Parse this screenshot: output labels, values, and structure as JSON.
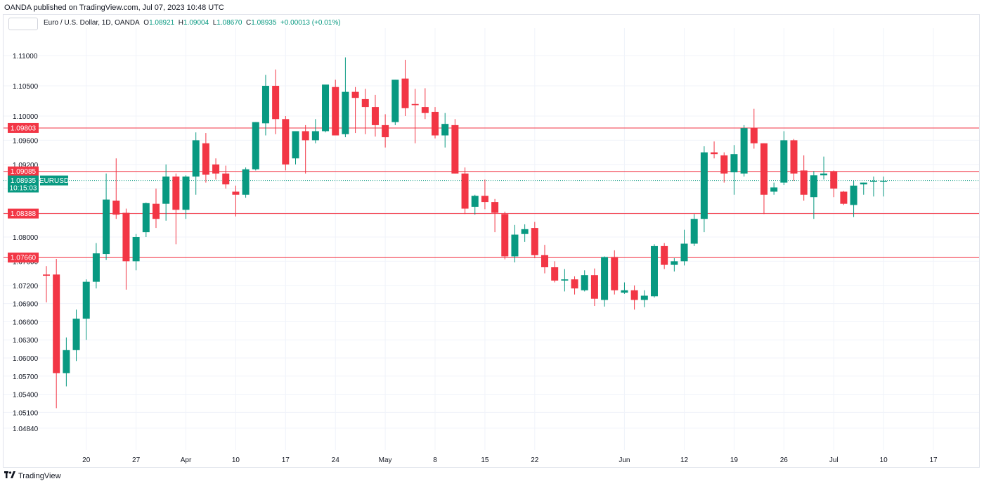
{
  "header": {
    "published": "OANDA published on TradingView.com, Jul 07, 2023 10:48 UTC"
  },
  "legend": {
    "symbol": "Euro / U.S. Dollar, 1D, OANDA",
    "o_label": "O",
    "o_value": "1.08921",
    "h_label": "H",
    "h_value": "1.09004",
    "l_label": "L",
    "l_value": "1.08670",
    "c_label": "C",
    "c_value": "1.08935",
    "change": "+0.00013 (+0.01%)"
  },
  "footer": {
    "brand": "TradingView",
    "logo": "tradingview-logo-icon"
  },
  "colors": {
    "up": "#089981",
    "down": "#f23645",
    "level": "#f23645",
    "grid": "#f0f3fa"
  },
  "chart_data": {
    "type": "candlestick",
    "symbol_tag": "EURUSD",
    "last_price": "1.08935",
    "countdown": "10:15:03",
    "y_ticks": [
      "1.11000",
      "1.10500",
      "1.10000",
      "1.09600",
      "1.09200",
      "1.08800",
      "1.08400",
      "1.08000",
      "1.07600",
      "1.07200",
      "1.06900",
      "1.06600",
      "1.06300",
      "1.06000",
      "1.05700",
      "1.05400",
      "1.05100",
      "1.04840"
    ],
    "x_ticks": [
      "20",
      "27",
      "Apr",
      "10",
      "17",
      "24",
      "May",
      "8",
      "15",
      "22",
      "Jun",
      "12",
      "19",
      "26",
      "Jul",
      "10",
      "17"
    ],
    "x_tick_slots": [
      4,
      9,
      14,
      19,
      24,
      29,
      34,
      39,
      44,
      49,
      58,
      64,
      69,
      74,
      79,
      84,
      89
    ],
    "levels": [
      "1.09803",
      "1.09085",
      "1.08388",
      "1.07660"
    ],
    "slots": [
      0,
      1,
      2,
      3,
      4,
      5,
      6,
      7,
      8,
      9,
      10,
      11,
      12,
      13,
      14,
      15,
      16,
      17,
      18,
      19,
      20,
      21,
      22,
      23,
      24,
      25,
      26,
      27,
      28,
      29,
      30,
      31,
      32,
      33,
      34,
      35,
      36,
      37,
      38,
      39,
      40,
      41,
      42,
      43,
      44,
      45,
      46,
      47,
      48,
      49,
      50,
      51,
      52,
      53,
      54,
      55,
      56,
      57,
      58,
      59,
      60,
      61,
      62,
      63,
      64,
      65,
      66,
      67,
      68,
      69,
      70,
      71,
      72,
      73,
      74,
      75,
      76,
      77,
      78,
      79,
      80,
      81,
      82,
      83,
      84
    ],
    "ohlc": [
      [
        1.0738,
        1.0752,
        1.0692,
        1.0736
      ],
      [
        1.0738,
        1.0764,
        1.0517,
        1.0575
      ],
      [
        1.0575,
        1.0634,
        1.0553,
        1.0613
      ],
      [
        1.0613,
        1.068,
        1.0595,
        1.0665
      ],
      [
        1.0665,
        1.073,
        1.063,
        1.0726
      ],
      [
        1.0726,
        1.079,
        1.0715,
        1.0773
      ],
      [
        1.0772,
        1.0905,
        1.0762,
        1.0862
      ],
      [
        1.086,
        1.093,
        1.083,
        1.0837
      ],
      [
        1.084,
        1.0847,
        1.0713,
        1.076
      ],
      [
        1.076,
        1.0805,
        1.0745,
        1.08
      ],
      [
        1.0808,
        1.0857,
        1.08,
        1.0856
      ],
      [
        1.0855,
        1.088,
        1.0815,
        1.083
      ],
      [
        1.0855,
        1.092,
        1.0827,
        1.09
      ],
      [
        1.09,
        1.0905,
        1.0788,
        1.0845
      ],
      [
        1.0845,
        1.0902,
        1.083,
        1.09
      ],
      [
        1.09,
        1.0973,
        1.087,
        1.096
      ],
      [
        1.0955,
        1.0972,
        1.089,
        1.0903
      ],
      [
        1.092,
        1.093,
        1.0895,
        1.0905
      ],
      [
        1.0905,
        1.0918,
        1.088,
        1.0887
      ],
      [
        1.0875,
        1.0885,
        1.0834,
        1.087
      ],
      [
        1.087,
        1.0915,
        1.0865,
        1.0912
      ],
      [
        1.0912,
        1.099,
        1.091,
        1.099
      ],
      [
        1.0988,
        1.1068,
        1.0968,
        1.105
      ],
      [
        1.105,
        1.1077,
        1.097,
        1.0995
      ],
      [
        1.0995,
        1.1,
        1.091,
        1.092
      ],
      [
        1.093,
        1.0975,
        1.092,
        1.0975
      ],
      [
        1.0975,
        1.0985,
        1.0905,
        1.096
      ],
      [
        1.096,
        1.0995,
        1.0955,
        1.0975
      ],
      [
        1.0975,
        1.105,
        1.0973,
        1.1052
      ],
      [
        1.1048,
        1.106,
        1.097,
        1.0968
      ],
      [
        1.097,
        1.1097,
        1.0965,
        1.104
      ],
      [
        1.104,
        1.1048,
        1.0972,
        1.103
      ],
      [
        1.1028,
        1.1045,
        1.097,
        1.1015
      ],
      [
        1.1015,
        1.1035,
        1.0966,
        1.0985
      ],
      [
        1.0985,
        1.1003,
        1.0948,
        1.0965
      ],
      [
        1.099,
        1.106,
        1.0985,
        1.106
      ],
      [
        1.1062,
        1.1093,
        1.1,
        1.1013
      ],
      [
        1.102,
        1.1045,
        1.0955,
        1.1018
      ],
      [
        1.1015,
        1.1046,
        1.0995,
        1.1005
      ],
      [
        1.1007,
        1.1015,
        1.0963,
        1.0968
      ],
      [
        1.0968,
        1.1005,
        1.0948,
        1.0987
      ],
      [
        1.0985,
        1.0995,
        1.0905,
        1.0905
      ],
      [
        1.0905,
        1.0915,
        1.0838,
        1.0847
      ],
      [
        1.085,
        1.087,
        1.0837,
        1.0868
      ],
      [
        1.0868,
        1.0895,
        1.0846,
        1.0858
      ],
      [
        1.0858,
        1.0863,
        1.0808,
        1.084
      ],
      [
        1.0838,
        1.0842,
        1.0763,
        1.0768
      ],
      [
        1.0768,
        1.082,
        1.0758,
        1.0804
      ],
      [
        1.0805,
        1.0821,
        1.0792,
        1.0813
      ],
      [
        1.0815,
        1.0825,
        1.0765,
        1.077
      ],
      [
        1.077,
        1.0787,
        1.074,
        1.075
      ],
      [
        1.075,
        1.076,
        1.0725,
        1.0728
      ],
      [
        1.0728,
        1.0747,
        1.071,
        1.073
      ],
      [
        1.073,
        1.0735,
        1.0705,
        1.0715
      ],
      [
        1.0712,
        1.0745,
        1.071,
        1.0737
      ],
      [
        1.0737,
        1.0748,
        1.0686,
        1.0698
      ],
      [
        1.0696,
        1.0768,
        1.0685,
        1.0767
      ],
      [
        1.0767,
        1.0778,
        1.0705,
        1.0712
      ],
      [
        1.0708,
        1.0725,
        1.0706,
        1.0712
      ],
      [
        1.0712,
        1.072,
        1.068,
        1.0696
      ],
      [
        1.0696,
        1.0712,
        1.0684,
        1.0703
      ],
      [
        1.0702,
        1.0788,
        1.07,
        1.0785
      ],
      [
        1.0785,
        1.079,
        1.0747,
        1.0754
      ],
      [
        1.0754,
        1.0765,
        1.0743,
        1.076
      ],
      [
        1.076,
        1.0812,
        1.0753,
        1.0789
      ],
      [
        1.0789,
        1.0838,
        1.0785,
        1.083
      ],
      [
        1.083,
        1.095,
        1.0808,
        1.094
      ],
      [
        1.094,
        1.0958,
        1.093,
        1.0937
      ],
      [
        1.0935,
        1.094,
        1.089,
        1.0905
      ],
      [
        1.0907,
        1.0952,
        1.087,
        1.0937
      ],
      [
        1.0905,
        1.0985,
        1.09,
        1.098
      ],
      [
        1.098,
        1.1012,
        1.0946,
        1.0955
      ],
      [
        1.0955,
        1.0955,
        1.0838,
        1.087
      ],
      [
        1.0875,
        1.089,
        1.087,
        1.0882
      ],
      [
        1.089,
        1.0975,
        1.0886,
        1.096
      ],
      [
        1.096,
        1.0962,
        1.0893,
        1.0905
      ],
      [
        1.091,
        1.0935,
        1.086,
        1.087
      ],
      [
        1.0866,
        1.0909,
        1.083,
        1.0902
      ],
      [
        1.0902,
        1.0933,
        1.0895,
        1.0905
      ],
      [
        1.0908,
        1.091,
        1.0866,
        1.088
      ],
      [
        1.0875,
        1.0876,
        1.0853,
        1.0855
      ],
      [
        1.0853,
        1.0893,
        1.0833,
        1.0885
      ],
      [
        1.0887,
        1.089,
        1.087,
        1.089
      ],
      [
        1.0892,
        1.09,
        1.0867,
        1.0893
      ],
      [
        1.0892,
        1.09,
        1.0867,
        1.0893
      ]
    ]
  }
}
